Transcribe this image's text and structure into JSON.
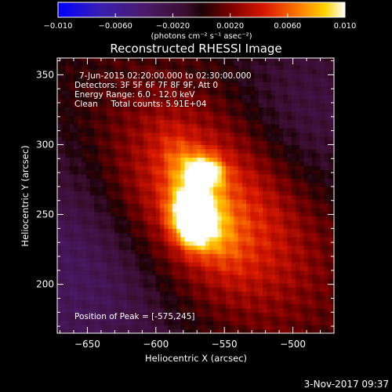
{
  "chart_data": {
    "type": "heatmap",
    "title": "Reconstructed RHESSI Image",
    "xlabel": "Heliocentric X (arcsec)",
    "ylabel": "Heliocentric Y (arcsec)",
    "xlim": [
      -672,
      -470
    ],
    "ylim": [
      165,
      362
    ],
    "x_ticks": [
      -650,
      -600,
      -550,
      -500
    ],
    "y_ticks": [
      200,
      250,
      300,
      350
    ],
    "x_tick_labels": [
      "−650",
      "−600",
      "−550",
      "−500"
    ],
    "y_tick_labels": [
      "200",
      "250",
      "300",
      "350"
    ],
    "colorbar": {
      "range": [
        -0.01,
        0.01
      ],
      "ticks": [
        -0.01,
        -0.006,
        -0.002,
        0.002,
        0.006,
        0.01
      ],
      "tick_labels": [
        "−0.010",
        "−0.0060",
        "−0.0020",
        "0.0020",
        "0.0060",
        "0.010"
      ],
      "units": "(photons cm⁻² s⁻¹ asec⁻²)",
      "colormap": "blue-purple-red-orange-yellow-white"
    },
    "annotations": [
      "7-Jun-2015 02:20:00.000 to 02:30:00.000",
      "Detectors: 3F 5F 6F 7F 8F 9F, Att 0",
      "Energy Range: 6.0 - 12.0 keV",
      "Clean     Total counts: 5.91E+04"
    ],
    "peak_label": "Position of Peak = [-575,245]",
    "peak": [
      -575,
      245
    ],
    "sources": [
      {
        "x": -575,
        "y": 245,
        "peak": 0.01
      },
      {
        "x": -562,
        "y": 282,
        "peak": 0.0085
      }
    ],
    "grid": false
  },
  "footer": {
    "timestamp": "3-Nov-2017 09:37"
  }
}
